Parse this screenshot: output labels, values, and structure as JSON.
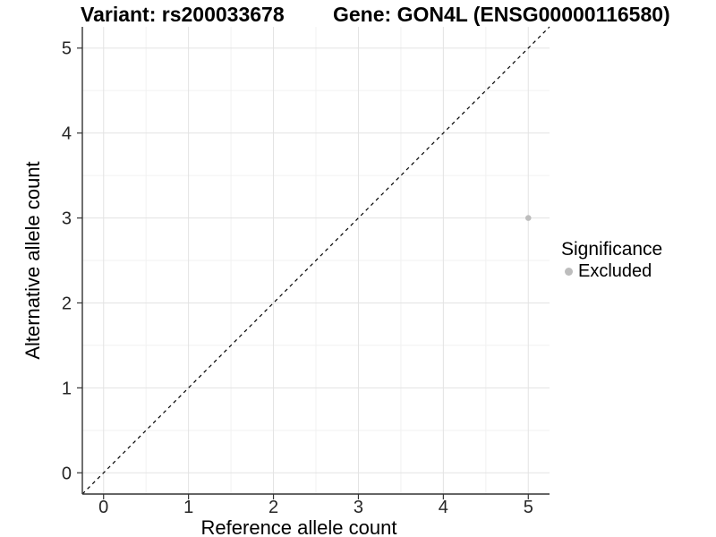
{
  "title": {
    "variant": "Variant: rs200033678",
    "gene": "Gene: GON4L (ENSG00000116580)"
  },
  "axes": {
    "x_label": "Reference allele count",
    "y_label": "Alternative allele count"
  },
  "legend": {
    "title": "Significance",
    "items": [
      {
        "label": "Excluded",
        "color": "#bdbdbd"
      }
    ]
  },
  "colors": {
    "background": "#ffffff",
    "grid_major": "#e3e3e3",
    "grid_minor": "#f1f1f1",
    "axis_line": "#333333",
    "tick_mark": "#333333",
    "tick_text": "#262626",
    "reference_line": "#000000",
    "excluded_point": "#bdbdbd"
  },
  "chart_data": {
    "type": "scatter",
    "title_left": "Variant: rs200033678",
    "title_right": "Gene: GON4L (ENSG00000116580)",
    "xlabel": "Reference allele count",
    "ylabel": "Alternative allele count",
    "xlim": [
      -0.25,
      5.25
    ],
    "ylim": [
      -0.25,
      5.25
    ],
    "x_ticks": [
      0,
      1,
      2,
      3,
      4,
      5
    ],
    "y_ticks": [
      0,
      1,
      2,
      3,
      4,
      5
    ],
    "x_minor_ticks": [
      0.5,
      1.5,
      2.5,
      3.5,
      4.5
    ],
    "y_minor_ticks": [
      0.5,
      1.5,
      2.5,
      3.5,
      4.5
    ],
    "grid": "major+minor",
    "legend_position": "right",
    "legend_title": "Significance",
    "series": [
      {
        "name": "Excluded",
        "color": "#bdbdbd",
        "points": [
          {
            "x": 5,
            "y": 3
          }
        ]
      }
    ],
    "reference_line": {
      "type": "identity",
      "slope": 1,
      "intercept": 0,
      "style": "dashed",
      "color": "#000000"
    }
  }
}
